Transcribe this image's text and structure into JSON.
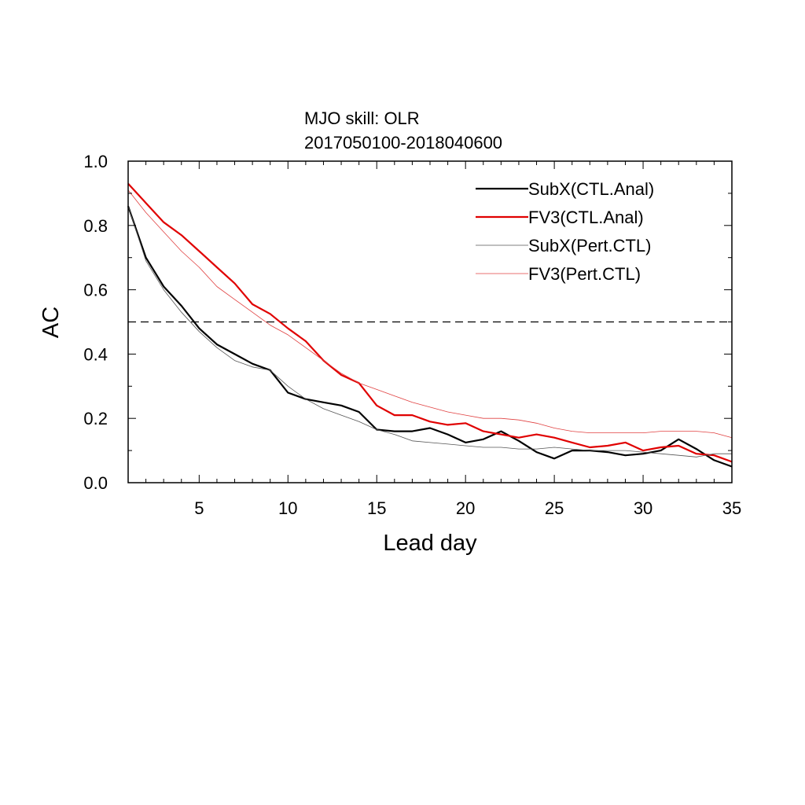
{
  "chart_data": {
    "type": "line",
    "title": "MJO skill: OLR",
    "subtitle": "2017050100-2018040600",
    "xlabel": "Lead day",
    "ylabel": "AC",
    "xlim": [
      1,
      35
    ],
    "ylim": [
      0.0,
      1.0
    ],
    "xticks": [
      "5",
      "10",
      "15",
      "20",
      "25",
      "30",
      "35"
    ],
    "yticks": [
      "0.0",
      "0.2",
      "0.4",
      "0.6",
      "0.8",
      "1.0"
    ],
    "reference_line": {
      "y": 0.5,
      "style": "dashed",
      "color": "#000000"
    },
    "legend_position": "top-right",
    "x": [
      1,
      2,
      3,
      4,
      5,
      6,
      7,
      8,
      9,
      10,
      11,
      12,
      13,
      14,
      15,
      16,
      17,
      18,
      19,
      20,
      21,
      22,
      23,
      24,
      25,
      26,
      27,
      28,
      29,
      30,
      31,
      32,
      33,
      34,
      35
    ],
    "series": [
      {
        "name": "SubX(CTL.Anal)",
        "color": "#000000",
        "style": "thick",
        "values": [
          0.86,
          0.7,
          0.61,
          0.55,
          0.48,
          0.43,
          0.4,
          0.37,
          0.35,
          0.28,
          0.26,
          0.25,
          0.24,
          0.22,
          0.165,
          0.16,
          0.16,
          0.17,
          0.15,
          0.125,
          0.135,
          0.16,
          0.13,
          0.095,
          0.075,
          0.1,
          0.1,
          0.095,
          0.085,
          0.09,
          0.1,
          0.135,
          0.105,
          0.07,
          0.05
        ]
      },
      {
        "name": "FV3(CTL.Anal)",
        "color": "#e00000",
        "style": "thick",
        "values": [
          0.93,
          0.87,
          0.81,
          0.77,
          0.72,
          0.67,
          0.62,
          0.555,
          0.525,
          0.48,
          0.44,
          0.38,
          0.335,
          0.31,
          0.24,
          0.21,
          0.21,
          0.19,
          0.18,
          0.185,
          0.16,
          0.15,
          0.14,
          0.15,
          0.14,
          0.125,
          0.11,
          0.115,
          0.125,
          0.1,
          0.11,
          0.115,
          0.09,
          0.085,
          0.065
        ]
      },
      {
        "name": "SubX(Pert.CTL)",
        "color": "#555555",
        "style": "thin",
        "values": [
          0.86,
          0.69,
          0.6,
          0.53,
          0.47,
          0.42,
          0.38,
          0.36,
          0.35,
          0.3,
          0.26,
          0.23,
          0.21,
          0.19,
          0.165,
          0.15,
          0.13,
          0.125,
          0.12,
          0.115,
          0.11,
          0.11,
          0.105,
          0.105,
          0.11,
          0.105,
          0.1,
          0.1,
          0.1,
          0.095,
          0.09,
          0.085,
          0.08,
          0.09,
          0.09
        ]
      },
      {
        "name": "FV3(Pert.CTL)",
        "color": "#e04040",
        "style": "thin",
        "values": [
          0.91,
          0.84,
          0.78,
          0.72,
          0.67,
          0.61,
          0.57,
          0.53,
          0.49,
          0.46,
          0.42,
          0.38,
          0.34,
          0.31,
          0.29,
          0.27,
          0.25,
          0.235,
          0.22,
          0.21,
          0.2,
          0.2,
          0.195,
          0.185,
          0.17,
          0.16,
          0.155,
          0.155,
          0.155,
          0.155,
          0.16,
          0.16,
          0.16,
          0.155,
          0.14
        ]
      }
    ]
  }
}
